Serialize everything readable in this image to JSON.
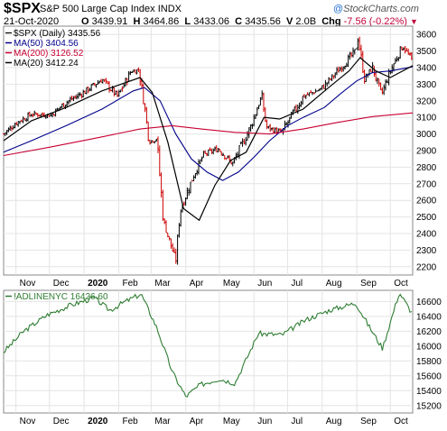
{
  "header": {
    "symbol": "$SPX",
    "index_name": "S&P 500 Large Cap Index",
    "exchange": "INDX",
    "brand": "StockCharts.com",
    "brand_mark": "@",
    "date": "21-Oct-2020",
    "open_label": "O",
    "open": "3439.91",
    "high_label": "H",
    "high": "3464.86",
    "low_label": "L",
    "low": "3433.06",
    "close_label": "C",
    "close": "3435.56",
    "volume_label": "V",
    "volume": "2.0B",
    "chg_label": "Chg",
    "chg": "-7.56 (-0.22%)",
    "chg_marker": "▼"
  },
  "chart_data": [
    {
      "type": "line",
      "panel": "price",
      "ylim": [
        2150,
        3650
      ],
      "yticks": [
        2200,
        2300,
        2400,
        2500,
        2600,
        2700,
        2800,
        2900,
        3000,
        3100,
        3200,
        3300,
        3400,
        3500,
        3600
      ],
      "x_range": [
        "2019-10-21",
        "2020-10-21"
      ],
      "x_months": [
        "Nov",
        "Dec",
        "2020",
        "Feb",
        "Mar",
        "Apr",
        "May",
        "Jun",
        "Jul",
        "Aug",
        "Sep",
        "Oct"
      ],
      "x_month_dates": [
        "2019-11-01",
        "2019-12-01",
        "2020-01-01",
        "2020-02-01",
        "2020-03-01",
        "2020-04-01",
        "2020-05-01",
        "2020-06-01",
        "2020-07-01",
        "2020-08-01",
        "2020-09-01",
        "2020-10-01"
      ],
      "grid": true,
      "legend": "top-left",
      "series": [
        {
          "name": "$SPX (Daily) 3435.56",
          "style": "ohlc-bars",
          "color_up": "#000000",
          "color_down": "#cc0000",
          "dates": [
            "2019-10-21",
            "2019-11-01",
            "2019-11-15",
            "2019-12-02",
            "2019-12-16",
            "2020-01-02",
            "2020-01-17",
            "2020-01-31",
            "2020-02-12",
            "2020-02-19",
            "2020-02-25",
            "2020-02-28",
            "2020-03-06",
            "2020-03-12",
            "2020-03-16",
            "2020-03-23",
            "2020-03-27",
            "2020-04-08",
            "2020-04-17",
            "2020-04-30",
            "2020-05-13",
            "2020-05-29",
            "2020-06-08",
            "2020-06-12",
            "2020-06-26",
            "2020-07-15",
            "2020-07-31",
            "2020-08-14",
            "2020-08-31",
            "2020-09-02",
            "2020-09-08",
            "2020-09-15",
            "2020-09-23",
            "2020-10-01",
            "2020-10-12",
            "2020-10-21"
          ],
          "values": [
            3000,
            3066,
            3120,
            3113,
            3191,
            3257,
            3330,
            3225,
            3379,
            3386,
            3128,
            2954,
            2972,
            2480,
            2386,
            2237,
            2541,
            2750,
            2875,
            2912,
            2820,
            3044,
            3232,
            3041,
            3009,
            3226,
            3271,
            3372,
            3500,
            3580,
            3331,
            3401,
            3237,
            3380,
            3534,
            3436
          ]
        },
        {
          "name": "MA(50) 3404.56",
          "color": "#00008b",
          "dates": [
            "2019-10-21",
            "2019-11-15",
            "2019-12-16",
            "2020-01-17",
            "2020-02-14",
            "2020-02-24",
            "2020-03-09",
            "2020-03-23",
            "2020-04-06",
            "2020-04-20",
            "2020-05-04",
            "2020-05-18",
            "2020-06-01",
            "2020-06-15",
            "2020-07-01",
            "2020-07-15",
            "2020-08-03",
            "2020-08-17",
            "2020-09-01",
            "2020-09-15",
            "2020-10-01",
            "2020-10-21"
          ],
          "values": [
            2890,
            2960,
            3050,
            3150,
            3260,
            3280,
            3200,
            3000,
            2850,
            2770,
            2720,
            2770,
            2860,
            2960,
            3050,
            3100,
            3160,
            3240,
            3320,
            3370,
            3380,
            3405
          ]
        },
        {
          "name": "MA(200) 3126.52",
          "color": "#c80032",
          "dates": [
            "2019-10-21",
            "2019-12-01",
            "2020-01-15",
            "2020-02-20",
            "2020-03-20",
            "2020-04-15",
            "2020-05-15",
            "2020-06-15",
            "2020-07-15",
            "2020-08-15",
            "2020-09-15",
            "2020-10-21"
          ],
          "values": [
            2870,
            2920,
            2980,
            3030,
            3050,
            3030,
            3010,
            3000,
            3030,
            3070,
            3105,
            3127
          ]
        },
        {
          "name": "MA(20) 3412.24",
          "color": "#000000",
          "dates": [
            "2019-10-21",
            "2019-11-15",
            "2019-12-16",
            "2020-01-17",
            "2020-02-20",
            "2020-03-02",
            "2020-03-16",
            "2020-03-30",
            "2020-04-13",
            "2020-04-27",
            "2020-05-11",
            "2020-05-25",
            "2020-06-10",
            "2020-06-24",
            "2020-07-15",
            "2020-08-05",
            "2020-08-25",
            "2020-09-04",
            "2020-09-18",
            "2020-10-01",
            "2020-10-21"
          ],
          "values": [
            2960,
            3080,
            3160,
            3260,
            3340,
            3250,
            2950,
            2550,
            2480,
            2690,
            2840,
            2890,
            3100,
            3090,
            3150,
            3270,
            3380,
            3460,
            3380,
            3340,
            3412
          ]
        }
      ]
    },
    {
      "type": "line",
      "panel": "indicator",
      "ylim": [
        15100,
        16750
      ],
      "yticks": [
        15200,
        15400,
        15600,
        15800,
        16000,
        16200,
        16400,
        16600
      ],
      "x_range": [
        "2019-10-21",
        "2020-10-21"
      ],
      "x_months": [
        "Nov",
        "Dec",
        "2020",
        "Feb",
        "Mar",
        "Apr",
        "May",
        "Jun",
        "Jul",
        "Aug",
        "Sep",
        "Oct"
      ],
      "grid": true,
      "legend": "top-left",
      "series": [
        {
          "name": "!ADLINENYC 16426.60",
          "color": "#2e7d32",
          "dates": [
            "2019-10-21",
            "2019-11-08",
            "2019-11-29",
            "2019-12-20",
            "2020-01-10",
            "2020-01-24",
            "2020-02-07",
            "2020-02-21",
            "2020-03-06",
            "2020-03-20",
            "2020-04-01",
            "2020-04-14",
            "2020-05-01",
            "2020-05-15",
            "2020-06-05",
            "2020-06-26",
            "2020-07-17",
            "2020-08-07",
            "2020-08-31",
            "2020-09-11",
            "2020-09-24",
            "2020-10-09",
            "2020-10-21"
          ],
          "values": [
            15920,
            16200,
            16420,
            16550,
            16650,
            16480,
            16600,
            16700,
            16250,
            15650,
            15320,
            15480,
            15560,
            15500,
            16170,
            16150,
            16350,
            16480,
            16580,
            16290,
            15970,
            16720,
            16430
          ]
        }
      ]
    }
  ]
}
